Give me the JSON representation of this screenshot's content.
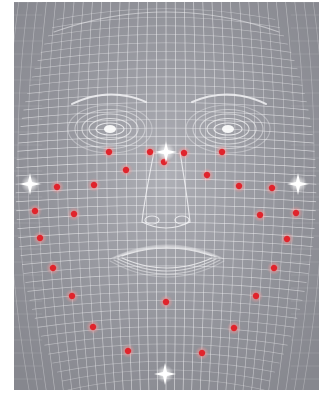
{
  "image": {
    "subject": "face-mesh-wireframe",
    "colors": {
      "background": "#8e8f96",
      "mesh": "#f2f2f4",
      "landmark_dot": "#e0242c",
      "landmark_halo": "#ff8a8a",
      "sparkle": "#ffffff"
    },
    "landmark_dot_count": 26,
    "sparkle_count": 4
  }
}
